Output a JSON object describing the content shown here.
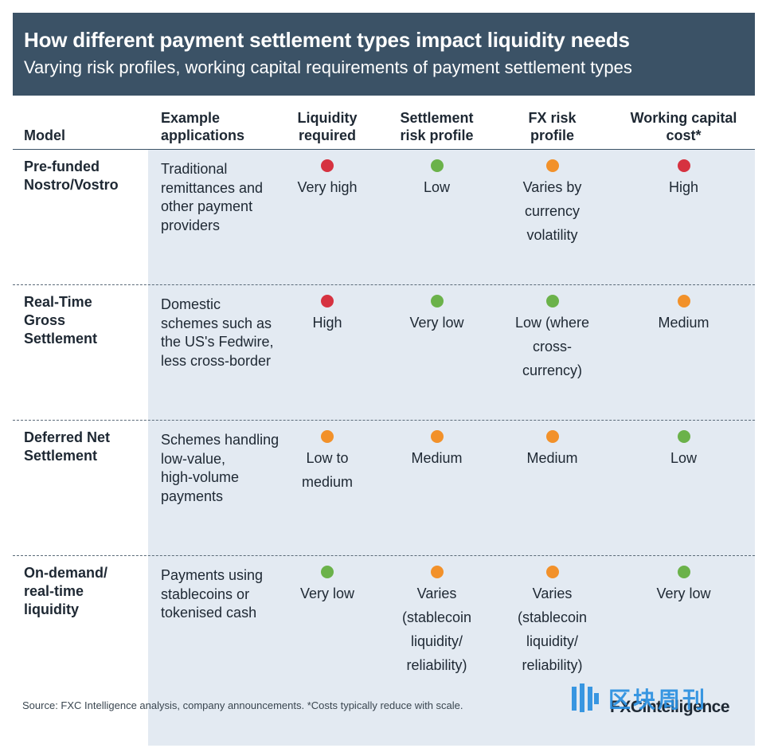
{
  "header": {
    "title": "How different payment settlement types impact liquidity needs",
    "subtitle": "Varying risk profiles, working capital requirements of payment settlement types"
  },
  "columns": {
    "model": "Model",
    "apps_l1": "Example",
    "apps_l2": "applications",
    "liq_l1": "Liquidity",
    "liq_l2": "required",
    "settle_l1": "Settlement",
    "settle_l2": "risk profile",
    "fx_l1": "FX risk",
    "fx_l2": "profile",
    "wc_l1": "Working capital",
    "wc_l2": "cost*"
  },
  "rows": [
    {
      "model": [
        "Pre-funded",
        "Nostro/Vostro"
      ],
      "apps": [
        "Traditional",
        "remittances and",
        "other payment",
        "providers"
      ],
      "liquidity": {
        "text": [
          "Very high"
        ],
        "level": "red"
      },
      "settlement": {
        "text": [
          "Low"
        ],
        "level": "green"
      },
      "fx": {
        "text": [
          "Varies by",
          "currency",
          "volatility"
        ],
        "level": "orange"
      },
      "wc": {
        "text": [
          "High"
        ],
        "level": "red"
      }
    },
    {
      "model": [
        "Real-Time",
        "Gross",
        "Settlement"
      ],
      "apps": [
        "Domestic",
        "schemes such as",
        "the US's Fedwire,",
        "less cross-border"
      ],
      "liquidity": {
        "text": [
          "High"
        ],
        "level": "red"
      },
      "settlement": {
        "text": [
          "Very low"
        ],
        "level": "green"
      },
      "fx": {
        "text": [
          "Low (where",
          "cross-",
          "currency)"
        ],
        "level": "green"
      },
      "wc": {
        "text": [
          "Medium"
        ],
        "level": "orange"
      }
    },
    {
      "model": [
        "Deferred Net",
        "Settlement"
      ],
      "apps": [
        "Schemes handling",
        "low-value,",
        "high-volume",
        "payments"
      ],
      "liquidity": {
        "text": [
          "Low to",
          "medium"
        ],
        "level": "orange"
      },
      "settlement": {
        "text": [
          "Medium"
        ],
        "level": "orange"
      },
      "fx": {
        "text": [
          "Medium"
        ],
        "level": "orange"
      },
      "wc": {
        "text": [
          "Low"
        ],
        "level": "green"
      }
    },
    {
      "model": [
        "On-demand/",
        "real-time",
        "liquidity"
      ],
      "apps": [
        "Payments using",
        "stablecoins or",
        "tokenised cash"
      ],
      "liquidity": {
        "text": [
          "Very low"
        ],
        "level": "green"
      },
      "settlement": {
        "text": [
          "Varies",
          "(stablecoin",
          "liquidity/",
          "reliability)"
        ],
        "level": "orange"
      },
      "fx": {
        "text": [
          "Varies",
          "(stablecoin",
          "liquidity/",
          "reliability)"
        ],
        "level": "orange"
      },
      "wc": {
        "text": [
          "Very low"
        ],
        "level": "green"
      }
    }
  ],
  "footer": {
    "source": "Source: FXC Intelligence analysis, company announcements. *Costs typically reduce with scale.",
    "logo": "FXCintelligence",
    "watermark": "区块周刊"
  },
  "colors": {
    "header_bg": "#3b5266",
    "shade": "#e3eaf2",
    "red": "#d63240",
    "green": "#6bb24a",
    "orange": "#f2912a"
  }
}
